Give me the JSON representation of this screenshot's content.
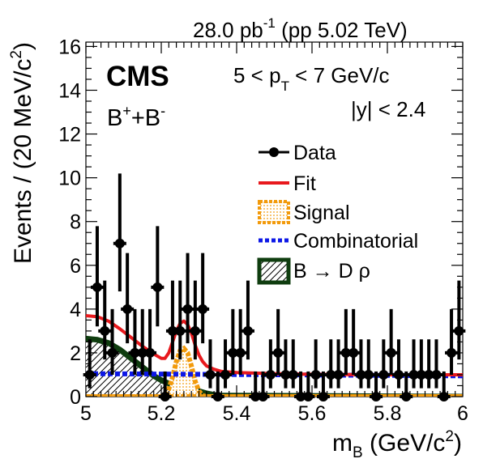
{
  "header": {
    "lumi_value": "28.0 pb",
    "lumi_exp": "-1",
    "lumi_system": " (pp 5.02 TeV)"
  },
  "annotations": {
    "experiment": "CMS",
    "particle_base": "B",
    "particle_sup1": "+",
    "particle_plus": "+B",
    "particle_sup2": "-",
    "pt_pre": "5 < p",
    "pt_sub": "T",
    "pt_post": " < 7 GeV/c",
    "rapidity": "|y| < 2.4"
  },
  "axes": {
    "x_label_pre": "m",
    "x_label_sub": "B",
    "x_label_mid": " (GeV/c",
    "x_label_sup": "2",
    "x_label_post": ")",
    "y_label_pre": "Events / (20 MeV/c",
    "y_label_sup": "2",
    "y_label_post": ")"
  },
  "legend": {
    "data": "Data",
    "fit": "Fit",
    "signal": "Signal",
    "combinatorial": "Combinatorial",
    "bdrho": "B → D ρ"
  },
  "colors": {
    "data": "#000000",
    "fit": "#e8191d",
    "signal": "#f29a0b",
    "combinatorial": "#0d18e6",
    "bdrho": "#0f3d0f"
  },
  "chart_data": {
    "type": "scatter",
    "xlim": [
      5.0,
      6.0
    ],
    "ylim": [
      0,
      16.2
    ],
    "x_ticks": [
      "5",
      "5.2",
      "5.4",
      "5.6",
      "5.8",
      "6"
    ],
    "y_ticks": [
      "0",
      "2",
      "4",
      "6",
      "8",
      "10",
      "12",
      "14",
      "16"
    ],
    "series": [
      {
        "name": "Data",
        "x": [
          5.01,
          5.03,
          5.05,
          5.07,
          5.09,
          5.11,
          5.13,
          5.15,
          5.17,
          5.19,
          5.21,
          5.23,
          5.25,
          5.27,
          5.29,
          5.31,
          5.33,
          5.35,
          5.37,
          5.39,
          5.41,
          5.43,
          5.45,
          5.47,
          5.49,
          5.51,
          5.53,
          5.55,
          5.57,
          5.59,
          5.61,
          5.63,
          5.65,
          5.67,
          5.69,
          5.71,
          5.73,
          5.75,
          5.77,
          5.79,
          5.81,
          5.83,
          5.85,
          5.87,
          5.89,
          5.91,
          5.93,
          5.95,
          5.97,
          5.99
        ],
        "y": [
          1,
          5,
          3,
          2,
          7,
          4,
          2,
          2,
          2,
          5,
          0,
          3,
          3,
          4,
          3,
          4,
          1,
          0,
          1,
          2,
          2,
          3,
          0,
          0,
          1,
          2,
          1,
          1,
          0,
          0,
          1,
          0,
          1,
          1,
          2,
          2,
          1,
          1,
          0,
          1,
          2,
          1,
          0,
          1,
          1,
          1,
          1,
          0,
          2,
          3
        ]
      },
      {
        "name": "Fit",
        "x": [
          5.0,
          5.03,
          5.06,
          5.09,
          5.12,
          5.15,
          5.18,
          5.2,
          5.21,
          5.22,
          5.23,
          5.24,
          5.25,
          5.26,
          5.27,
          5.28,
          5.29,
          5.3,
          5.31,
          5.32,
          5.34,
          5.36,
          5.4,
          5.5,
          5.6,
          5.7,
          5.8,
          5.9,
          6.0
        ],
        "y": [
          3.7,
          3.65,
          3.45,
          3.1,
          2.7,
          2.3,
          1.95,
          1.75,
          1.75,
          2.0,
          2.5,
          3.0,
          3.35,
          3.45,
          3.3,
          2.9,
          2.35,
          1.9,
          1.6,
          1.4,
          1.25,
          1.15,
          1.1,
          1.05,
          1.02,
          1.01,
          1.0,
          1.0,
          1.0
        ]
      },
      {
        "name": "Combinatorial",
        "x": [
          5.0,
          6.0
        ],
        "y": [
          1.05,
          0.95
        ]
      },
      {
        "name": "B → D ρ",
        "x": [
          5.0,
          5.03,
          5.06,
          5.09,
          5.12,
          5.15,
          5.18,
          5.2,
          5.22,
          5.24,
          5.26,
          5.28,
          5.3,
          5.32,
          5.35,
          6.0
        ],
        "y": [
          2.65,
          2.6,
          2.45,
          2.15,
          1.75,
          1.35,
          0.95,
          0.75,
          0.6,
          0.5,
          0.42,
          0.35,
          0.25,
          0.15,
          0.05,
          0.0
        ]
      },
      {
        "name": "Signal",
        "x": [
          5.0,
          5.2,
          5.21,
          5.22,
          5.23,
          5.24,
          5.25,
          5.26,
          5.27,
          5.28,
          5.29,
          5.3,
          5.31,
          5.32,
          6.0
        ],
        "y": [
          0.0,
          0.0,
          0.08,
          0.35,
          0.9,
          1.6,
          2.1,
          2.2,
          2.0,
          1.4,
          0.7,
          0.25,
          0.05,
          0.0,
          0.0
        ]
      }
    ]
  }
}
